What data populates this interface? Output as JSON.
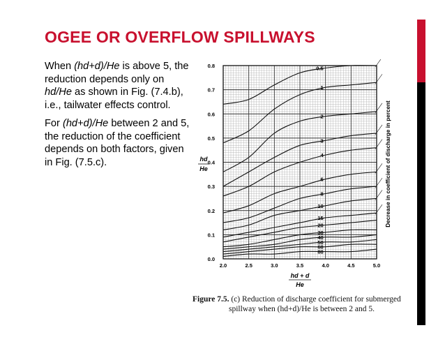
{
  "slide": {
    "title": "OGEE OR OVERFLOW SPILLWAYS",
    "accent_color": "#c8102e",
    "para1": {
      "t1": "When ",
      "e1": "(hd+d)/He",
      "t2": " is above 5, the reduction depends only on ",
      "e2": "hd/He",
      "t3": " as shown in Fig. (7.4.b), i.e., tailwater effects control."
    },
    "para2": {
      "t1": "For ",
      "e1": "(hd+d)/He",
      "t2": " between 2 and 5, the reduction of the coefficient depends on both factors, given in Fig. (7.5.c)."
    }
  },
  "figure": {
    "caption_label": "Figure 7.5.",
    "caption_line1": " (c) Reduction of discharge coefficient for submerged",
    "caption_line2": "spillway when (hd+d)/He is between 2 and 5.",
    "y_label_top": "hd",
    "y_label_bottom": "He",
    "x_label_top": "hd + d",
    "x_label_bottom": "He",
    "right_label": "Decrease in coefficient of discharge in percent",
    "y_ticks": [
      "0.0",
      "0.1",
      "0.2",
      "0.3",
      "0.4",
      "0.5",
      "0.6",
      "0.7",
      "0.8"
    ],
    "x_ticks": [
      "2.0",
      "2.5",
      "3.0",
      "3.5",
      "4.0",
      "4.5",
      "5.0"
    ],
    "curve_labels": [
      "0.5",
      "1",
      "2",
      "3",
      "4",
      "6",
      "8",
      "10",
      "15",
      "20",
      "30",
      "40",
      "50",
      "60",
      "80"
    ]
  },
  "chart_data": {
    "type": "line",
    "title": "",
    "xlabel": "(hd + d)/He",
    "ylabel": "hd/He",
    "xlim": [
      2.0,
      5.0
    ],
    "ylim": [
      0.0,
      0.8
    ],
    "grid": true,
    "legend": "curve labels at x = 4.0",
    "x": [
      2.0,
      2.5,
      3.0,
      3.5,
      4.0,
      4.5,
      5.0
    ],
    "series": [
      {
        "name": "0.5",
        "values": [
          0.64,
          0.66,
          0.72,
          0.77,
          0.79,
          0.8,
          0.8
        ]
      },
      {
        "name": "1",
        "values": [
          0.48,
          0.53,
          0.62,
          0.68,
          0.71,
          0.72,
          0.73
        ]
      },
      {
        "name": "2",
        "values": [
          0.36,
          0.42,
          0.52,
          0.57,
          0.59,
          0.6,
          0.61
        ]
      },
      {
        "name": "3",
        "values": [
          0.3,
          0.36,
          0.42,
          0.47,
          0.49,
          0.51,
          0.52
        ]
      },
      {
        "name": "4",
        "values": [
          0.26,
          0.3,
          0.36,
          0.4,
          0.43,
          0.45,
          0.46
        ]
      },
      {
        "name": "6",
        "values": [
          0.19,
          0.22,
          0.27,
          0.3,
          0.33,
          0.35,
          0.36
        ]
      },
      {
        "name": "8",
        "values": [
          0.15,
          0.17,
          0.21,
          0.25,
          0.27,
          0.29,
          0.3
        ]
      },
      {
        "name": "10",
        "values": [
          0.12,
          0.14,
          0.18,
          0.2,
          0.22,
          0.24,
          0.25
        ]
      },
      {
        "name": "15",
        "values": [
          0.09,
          0.11,
          0.13,
          0.15,
          0.17,
          0.18,
          0.19
        ]
      },
      {
        "name": "20",
        "values": [
          0.07,
          0.09,
          0.11,
          0.13,
          0.14,
          0.15,
          0.16
        ]
      },
      {
        "name": "30",
        "values": [
          0.05,
          0.06,
          0.08,
          0.1,
          0.11,
          0.12,
          0.12
        ]
      },
      {
        "name": "40",
        "values": [
          0.04,
          0.05,
          0.06,
          0.08,
          0.09,
          0.09,
          0.1
        ]
      },
      {
        "name": "50",
        "values": [
          0.03,
          0.04,
          0.05,
          0.06,
          0.07,
          0.07,
          0.08
        ]
      },
      {
        "name": "60",
        "values": [
          0.02,
          0.03,
          0.04,
          0.05,
          0.05,
          0.06,
          0.06
        ]
      },
      {
        "name": "80",
        "values": [
          0.01,
          0.02,
          0.02,
          0.03,
          0.03,
          0.03,
          0.04
        ]
      }
    ]
  }
}
